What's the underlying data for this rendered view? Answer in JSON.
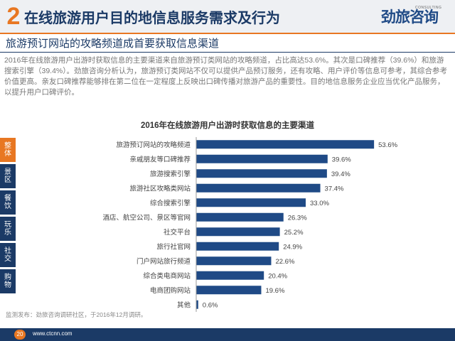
{
  "header": {
    "number": "2",
    "title": "在线旅游用户目的地信息服务需求及行为",
    "logo_text": "劲旅咨询",
    "logo_sub": "CONSULTING",
    "accent": "#e87722",
    "navy": "#1b3a66"
  },
  "subtitle": "旅游预订网站的攻略频道成首要获取信息渠道",
  "paragraph": "2016年在线旅游用户出游时获取信息的主要渠道来自旅游预订类网站的攻略频道，占比高达53.6%。其次是口碑推荐（39.6%）和旅游搜索引擎（39.4%）。劲旅咨询分析认为，旅游预订类网站不仅可以提供产品预订服务，还有攻略、用户评价等信息可参考，其综合参考价值更高。亲友口碑推荐能够排在第二位在一定程度上反映出口碑传播对旅游产品的重要性。目的地信息服务企业应当优化产品服务，以提升用户口碑评价。",
  "side_tabs": [
    {
      "label": "整体",
      "color": "#e87722"
    },
    {
      "label": "景区",
      "color": "#1b3a66"
    },
    {
      "label": "餐饮",
      "color": "#1b3a66"
    },
    {
      "label": "玩乐",
      "color": "#1b3a66"
    },
    {
      "label": "社交",
      "color": "#1b3a66"
    },
    {
      "label": "购物",
      "color": "#1b3a66"
    }
  ],
  "chart_data": {
    "type": "bar",
    "orientation": "horizontal",
    "title": "2016年在线旅游用户出游时获取信息的主要渠道",
    "categories": [
      "旅游预订网站的攻略频道",
      "亲戚朋友等口碑推荐",
      "旅游搜索引擎",
      "旅游社区攻略类网站",
      "综合搜索引擎",
      "酒店、航空公司、景区等官网",
      "社交平台",
      "旅行社官网",
      "门户网站旅行频道",
      "综合类电商网站",
      "电商团购网站",
      "其他"
    ],
    "values": [
      53.6,
      39.6,
      39.4,
      37.4,
      33.0,
      26.3,
      25.2,
      24.9,
      22.6,
      20.4,
      19.6,
      0.6
    ],
    "value_labels": [
      "53.6%",
      "39.6%",
      "39.4%",
      "37.4%",
      "33.0%",
      "26.3%",
      "25.2%",
      "24.9%",
      "22.6%",
      "20.4%",
      "19.6%",
      "0.6%"
    ],
    "xlim": [
      0,
      60
    ],
    "bar_color": "#1f4a86",
    "grid": false
  },
  "source": "监测发布：劲旅咨询调研社区，于2016年12月调研。",
  "footer": {
    "page": "20",
    "url": "www.ctcnn.com"
  }
}
